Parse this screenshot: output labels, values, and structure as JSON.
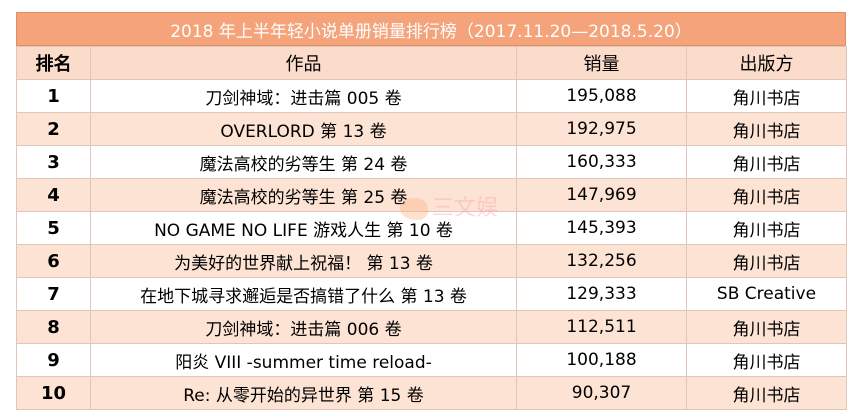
{
  "title": "2018 年上半年轻小说单册销量排行榜（2017.11.20—2018.5.20）",
  "headers": [
    "排名",
    "作品",
    "销量",
    "出版方"
  ],
  "rows": [
    {
      "rank": "1",
      "work": "刀剑神域：进击篇 005 卷",
      "sales": "195,088",
      "publisher": "角川书店"
    },
    {
      "rank": "2",
      "work": "OVERLORD 第 13 卷",
      "sales": "192,975",
      "publisher": "角川书店"
    },
    {
      "rank": "3",
      "work": "魔法高校的劣等生 第 24 卷",
      "sales": "160,333",
      "publisher": "角川书店"
    },
    {
      "rank": "4",
      "work": "魔法高校的劣等生 第 25 卷",
      "sales": "147,969",
      "publisher": "角川书店"
    },
    {
      "rank": "5",
      "work": "NO GAME NO LIFE 游戏人生 第 10 卷",
      "sales": "145,393",
      "publisher": "角川书店"
    },
    {
      "rank": "6",
      "work": "为美好的世界献上祝福！ 第 13 卷",
      "sales": "132,256",
      "publisher": "角川书店"
    },
    {
      "rank": "7",
      "work": "在地下城寻求邂逅是否搞错了什么 第 13 卷",
      "sales": "129,333",
      "publisher": "SB Creative"
    },
    {
      "rank": "8",
      "work": "刀剑神域：进击篇 006 卷",
      "sales": "112,511",
      "publisher": "角川书店"
    },
    {
      "rank": "9",
      "work": "阳炎 VIII -summer time reload-",
      "sales": "100,188",
      "publisher": "角川书店"
    },
    {
      "rank": "10",
      "work": "Re: 从零开始的异世界 第 15 卷",
      "sales": "90,307",
      "publisher": "角川书店"
    }
  ],
  "watermark": "三文娱",
  "colors": {
    "title_bg": "#f4a37a",
    "header_bg": "#fbdccb",
    "stripe_bg": "#fce3d4"
  }
}
